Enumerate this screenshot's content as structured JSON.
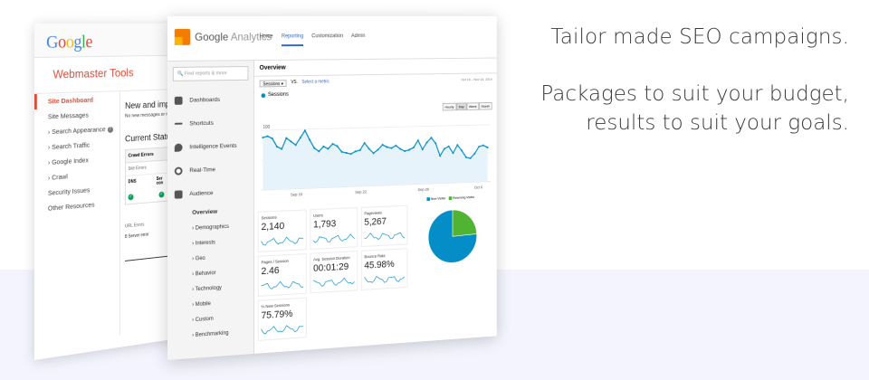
{
  "tagline": {
    "line1": "Tailor made SEO campaigns.",
    "line2a": "Packages to suit your budget,",
    "line2b": "results to suit your goals."
  },
  "wmt": {
    "logo": "Google",
    "title": "Webmaster Tools",
    "sidebar": [
      {
        "label": "Site Dashboard",
        "active": true
      },
      {
        "label": "Site Messages"
      },
      {
        "label": "› Search Appearance",
        "help": true
      },
      {
        "label": "› Search Traffic"
      },
      {
        "label": "› Google Index"
      },
      {
        "label": "› Crawl"
      },
      {
        "label": "Security Issues"
      },
      {
        "label": "Other Resources"
      }
    ],
    "heading": "New and import",
    "subtext": "No new messages or re",
    "status_heading": "Current Status",
    "crawl_errors": "Crawl Errors",
    "site_errors": "Site Errors",
    "col_dns": "DNS",
    "col_server": "Ser\ncon",
    "url_errors": "URL Errors",
    "server_error": "8 Server error"
  },
  "ga": {
    "logo_a": "Google",
    "logo_b": "Analytics",
    "nav": [
      "Home",
      "Reporting",
      "Customization",
      "Admin"
    ],
    "search_placeholder": "Find reports & more",
    "leftnav": [
      {
        "label": "Dashboards",
        "icon": "dashboards-icon"
      },
      {
        "label": "Shortcuts",
        "icon": "shortcuts-icon"
      },
      {
        "label": "Intelligence Events",
        "icon": "intelligence-icon"
      },
      {
        "label": "Real-Time",
        "icon": "realtime-icon"
      },
      {
        "label": "Audience",
        "icon": "audience-icon"
      }
    ],
    "audience_sub": [
      "Overview",
      "› Demographics",
      "› Interests",
      "› Geo",
      "› Behavior",
      "› Technology",
      "› Mobile",
      "› Custom",
      "› Benchmarking"
    ],
    "overview": "Overview",
    "metric_select": "Sessions",
    "vs": "VS.",
    "select_metric": "Select a metric",
    "date_range": "Oct 15 – Nov 14, 2014",
    "gran": [
      "Hourly",
      "Day",
      "Week",
      "Month"
    ],
    "legend": "Sessions",
    "tiles": [
      {
        "label": "Sessions",
        "value": "2,140"
      },
      {
        "label": "Users",
        "value": "1,793"
      },
      {
        "label": "Pageviews",
        "value": "5,267"
      },
      {
        "label": "Pages / Session",
        "value": "2.46"
      },
      {
        "label": "Avg. Session Duration",
        "value": "00:01:29"
      },
      {
        "label": "Bounce Rate",
        "value": "45.98%"
      },
      {
        "label": "% New Sessions",
        "value": "75.79%"
      }
    ],
    "pie_legend": [
      "New Visitor",
      "Returning Visitor"
    ]
  },
  "chart_data": [
    {
      "type": "line",
      "series": [
        {
          "name": "Sessions",
          "values": [
            88,
            90,
            86,
            72,
            68,
            86,
            80,
            74,
            86,
            98,
            82,
            68,
            62,
            70,
            66,
            74,
            70,
            60,
            58,
            56,
            60,
            62,
            74,
            64,
            56,
            62,
            70,
            66,
            64,
            68,
            62,
            58,
            60,
            64,
            76,
            60,
            72,
            80,
            70,
            48,
            60,
            64,
            52,
            66,
            56,
            44,
            42,
            50,
            62,
            64,
            60
          ]
        }
      ],
      "x_tick_labels": [
        "Sep 15",
        "Sep 22",
        "Sep 29",
        "Oct 6"
      ],
      "y_tick_labels": [
        "100",
        "50"
      ],
      "ylim": [
        0,
        110
      ]
    },
    {
      "type": "pie",
      "categories": [
        "New Visitor",
        "Returning Visitor"
      ],
      "values": [
        75.8,
        24.2
      ],
      "colors": [
        "#058dc7",
        "#50b432"
      ]
    }
  ],
  "colors": {
    "accent_red": "#dd4b39",
    "ga_blue": "#058dc7",
    "ga_green": "#50b432",
    "band": "#f3f4fd"
  }
}
